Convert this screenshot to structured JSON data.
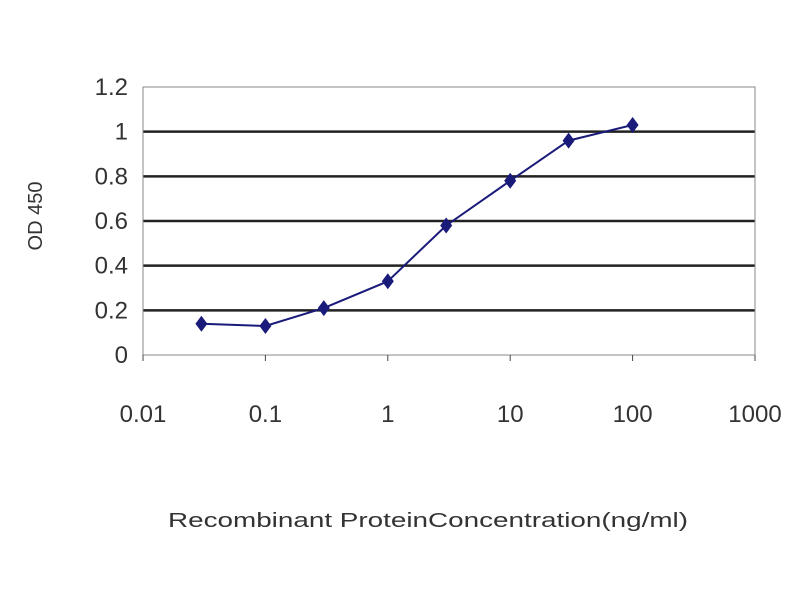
{
  "chart_data": {
    "type": "line",
    "title": "",
    "xlabel": "Recombinant ProteinConcentration(ng/ml)",
    "ylabel": "OD 450",
    "xscale": "log",
    "xlim": [
      0.01,
      1000
    ],
    "ylim": [
      0,
      1.2
    ],
    "xticks": [
      "0.01",
      "0.1",
      "1",
      "10",
      "100",
      "1000"
    ],
    "yticks": [
      "0",
      "0.2",
      "0.4",
      "0.6",
      "0.8",
      "1",
      "1.2"
    ],
    "grid": "horizontal",
    "series": [
      {
        "x": [
          0.03,
          0.1,
          0.3,
          1,
          3,
          10,
          30,
          100
        ],
        "y": [
          0.14,
          0.13,
          0.21,
          0.33,
          0.58,
          0.78,
          0.96,
          1.03
        ],
        "color": "#1a1a7a",
        "marker": "diamond"
      }
    ]
  }
}
